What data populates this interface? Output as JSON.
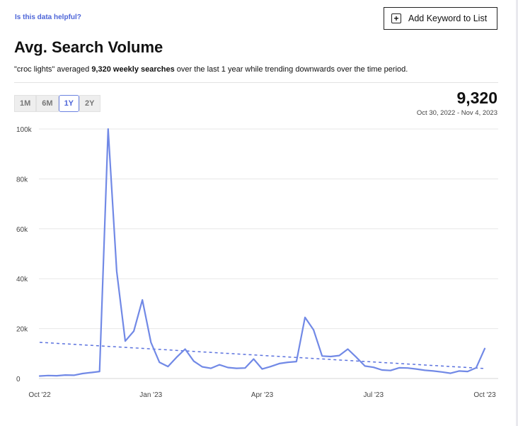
{
  "header": {
    "helpful_link": "Is this data helpful?",
    "add_button_label": "Add Keyword to List",
    "add_button_icon": "plus-square-icon"
  },
  "title": "Avg. Search Volume",
  "summary": {
    "prefix": "\"croc lights\" averaged ",
    "bold": "9,320 weekly searches",
    "suffix": " over the last 1 year while trending downwards over the time period."
  },
  "time_ranges": [
    {
      "label": "1M",
      "active": false
    },
    {
      "label": "6M",
      "active": false
    },
    {
      "label": "1Y",
      "active": true
    },
    {
      "label": "2Y",
      "active": false
    }
  ],
  "metric": {
    "value": "9,320",
    "date_range": "Oct 30, 2022 - Nov 4, 2023"
  },
  "colors": {
    "accent": "#4d65d8",
    "line": "#7189e6",
    "trend": "#5b72de"
  },
  "chart_data": {
    "type": "line",
    "title": "Avg. Search Volume",
    "xlabel": "",
    "ylabel": "",
    "x_tick_labels": [
      "Oct '22",
      "Jan '23",
      "Apr '23",
      "Jul '23",
      "Oct '23"
    ],
    "x_tick_weeks": [
      0,
      13,
      26,
      39,
      52
    ],
    "y_tick_labels": [
      "0",
      "20k",
      "40k",
      "60k",
      "80k",
      "100k"
    ],
    "y_tick_values": [
      0,
      20000,
      40000,
      60000,
      80000,
      100000
    ],
    "ylim": [
      0,
      100000
    ],
    "grid": true,
    "series": [
      {
        "name": "Weekly searches",
        "values": [
          1000,
          1200,
          1100,
          1400,
          1300,
          2000,
          2400,
          2800,
          100000,
          43000,
          15000,
          19000,
          31500,
          14500,
          6500,
          4800,
          8500,
          11800,
          7000,
          4700,
          4100,
          5500,
          4400,
          4100,
          4200,
          7800,
          3800,
          4800,
          6000,
          6500,
          6800,
          24500,
          19500,
          9000,
          8800,
          9200,
          11800,
          8500,
          5000,
          4500,
          3400,
          3200,
          4300,
          4200,
          3800,
          3300,
          3000,
          2600,
          2100,
          3000,
          2800,
          4300,
          12000
        ]
      },
      {
        "name": "Trend",
        "style": "dashed",
        "values": [
          14500,
          4000
        ]
      }
    ]
  }
}
